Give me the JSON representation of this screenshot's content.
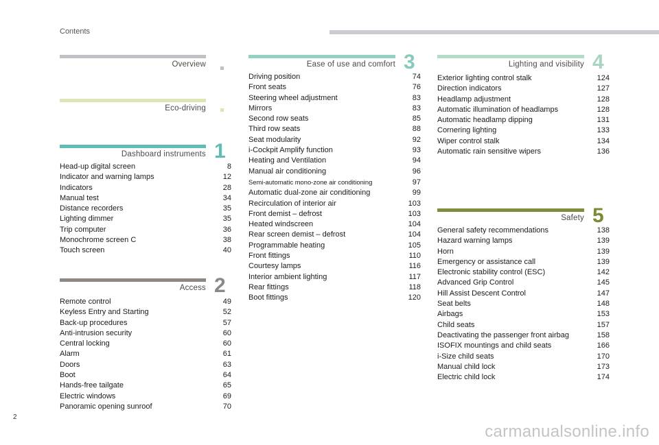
{
  "header": {
    "title": "Contents"
  },
  "page_number": "2",
  "watermark": "carmanualsonline.info",
  "colors": {
    "overview": "#c2bfc5",
    "eco": "#dfe4b4",
    "dashboard": "#5fbdb4",
    "access": "#8d8883",
    "ease": "#91d2c4",
    "ease_num": "#86c9bd",
    "lighting": "#b3dbc6",
    "lighting_num": "#a9d5c0",
    "safety": "#7e8d3b",
    "safety_num": "#7a8a37"
  },
  "sections": {
    "overview": {
      "title": "Overview",
      "num": "",
      "items": []
    },
    "eco": {
      "title": "Eco-driving",
      "num": "",
      "items": []
    },
    "dashboard": {
      "title": "Dashboard instruments",
      "num": "1",
      "items": [
        {
          "label": "Head-up digital screen",
          "page": "8"
        },
        {
          "label": "Indicator and warning lamps",
          "page": "12"
        },
        {
          "label": "Indicators",
          "page": "28"
        },
        {
          "label": "Manual test",
          "page": "34"
        },
        {
          "label": "Distance recorders",
          "page": "35"
        },
        {
          "label": "Lighting dimmer",
          "page": "35"
        },
        {
          "label": "Trip computer",
          "page": "36"
        },
        {
          "label": "Monochrome screen C",
          "page": "38"
        },
        {
          "label": "Touch screen",
          "page": "40"
        }
      ]
    },
    "access": {
      "title": "Access",
      "num": "2",
      "items": [
        {
          "label": "Remote control",
          "page": "49"
        },
        {
          "label": "Keyless Entry and Starting",
          "page": "52"
        },
        {
          "label": "Back-up procedures",
          "page": "57"
        },
        {
          "label": "Anti-intrusion security",
          "page": "60"
        },
        {
          "label": "Central locking",
          "page": "60"
        },
        {
          "label": "Alarm",
          "page": "61"
        },
        {
          "label": "Doors",
          "page": "63"
        },
        {
          "label": "Boot",
          "page": "64"
        },
        {
          "label": "Hands-free tailgate",
          "page": "65"
        },
        {
          "label": "Electric windows",
          "page": "69"
        },
        {
          "label": "Panoramic opening sunroof",
          "page": "70"
        }
      ]
    },
    "ease": {
      "title": "Ease of use and comfort",
      "num": "3",
      "items": [
        {
          "label": "Driving position",
          "page": "74"
        },
        {
          "label": "Front seats",
          "page": "76"
        },
        {
          "label": "Steering wheel adjustment",
          "page": "83"
        },
        {
          "label": "Mirrors",
          "page": "83"
        },
        {
          "label": "Second row seats",
          "page": "85"
        },
        {
          "label": "Third row seats",
          "page": "88"
        },
        {
          "label": "Seat modularity",
          "page": "92"
        },
        {
          "label": "i-Cockpit Amplify function",
          "page": "93"
        },
        {
          "label": "Heating and Ventilation",
          "page": "94"
        },
        {
          "label": "Manual air conditioning",
          "page": "96"
        },
        {
          "label": "Semi-automatic mono-zone air conditioning",
          "page": "97"
        },
        {
          "label": "Automatic dual-zone air conditioning",
          "page": "99"
        },
        {
          "label": "Recirculation of interior air",
          "page": "103"
        },
        {
          "label": "Front demist – defrost",
          "page": "103"
        },
        {
          "label": "Heated windscreen",
          "page": "104"
        },
        {
          "label": "Rear screen demist – defrost",
          "page": "104"
        },
        {
          "label": "Programmable heating",
          "page": "105"
        },
        {
          "label": "Front fittings",
          "page": "110"
        },
        {
          "label": "Courtesy lamps",
          "page": "116"
        },
        {
          "label": "Interior ambient lighting",
          "page": "117"
        },
        {
          "label": "Rear fittings",
          "page": "118"
        },
        {
          "label": "Boot fittings",
          "page": "120"
        }
      ]
    },
    "lighting": {
      "title": "Lighting and visibility",
      "num": "4",
      "items": [
        {
          "label": "Exterior lighting control stalk",
          "page": "124"
        },
        {
          "label": "Direction indicators",
          "page": "127"
        },
        {
          "label": "Headlamp adjustment",
          "page": "128"
        },
        {
          "label": "Automatic illumination of headlamps",
          "page": "128"
        },
        {
          "label": "Automatic headlamp dipping",
          "page": "131"
        },
        {
          "label": "Cornering lighting",
          "page": "133"
        },
        {
          "label": "Wiper control stalk",
          "page": "134"
        },
        {
          "label": "Automatic rain sensitive wipers",
          "page": "136"
        }
      ]
    },
    "safety": {
      "title": "Safety",
      "num": "5",
      "items": [
        {
          "label": "General safety recommendations",
          "page": "138"
        },
        {
          "label": "Hazard warning lamps",
          "page": "139"
        },
        {
          "label": "Horn",
          "page": "139"
        },
        {
          "label": "Emergency or assistance call",
          "page": "139"
        },
        {
          "label": "Electronic stability control (ESC)",
          "page": "142"
        },
        {
          "label": "Advanced Grip Control",
          "page": "145"
        },
        {
          "label": "Hill Assist Descent Control",
          "page": "147"
        },
        {
          "label": "Seat belts",
          "page": "148"
        },
        {
          "label": "Airbags",
          "page": "153"
        },
        {
          "label": "Child seats",
          "page": "157"
        },
        {
          "label": "Deactivating the passenger front airbag",
          "page": "158"
        },
        {
          "label": "ISOFIX mountings and child seats",
          "page": "166"
        },
        {
          "label": "i-Size child seats",
          "page": "170"
        },
        {
          "label": "Manual child lock",
          "page": "173"
        },
        {
          "label": "Electric child lock",
          "page": "174"
        }
      ]
    }
  }
}
